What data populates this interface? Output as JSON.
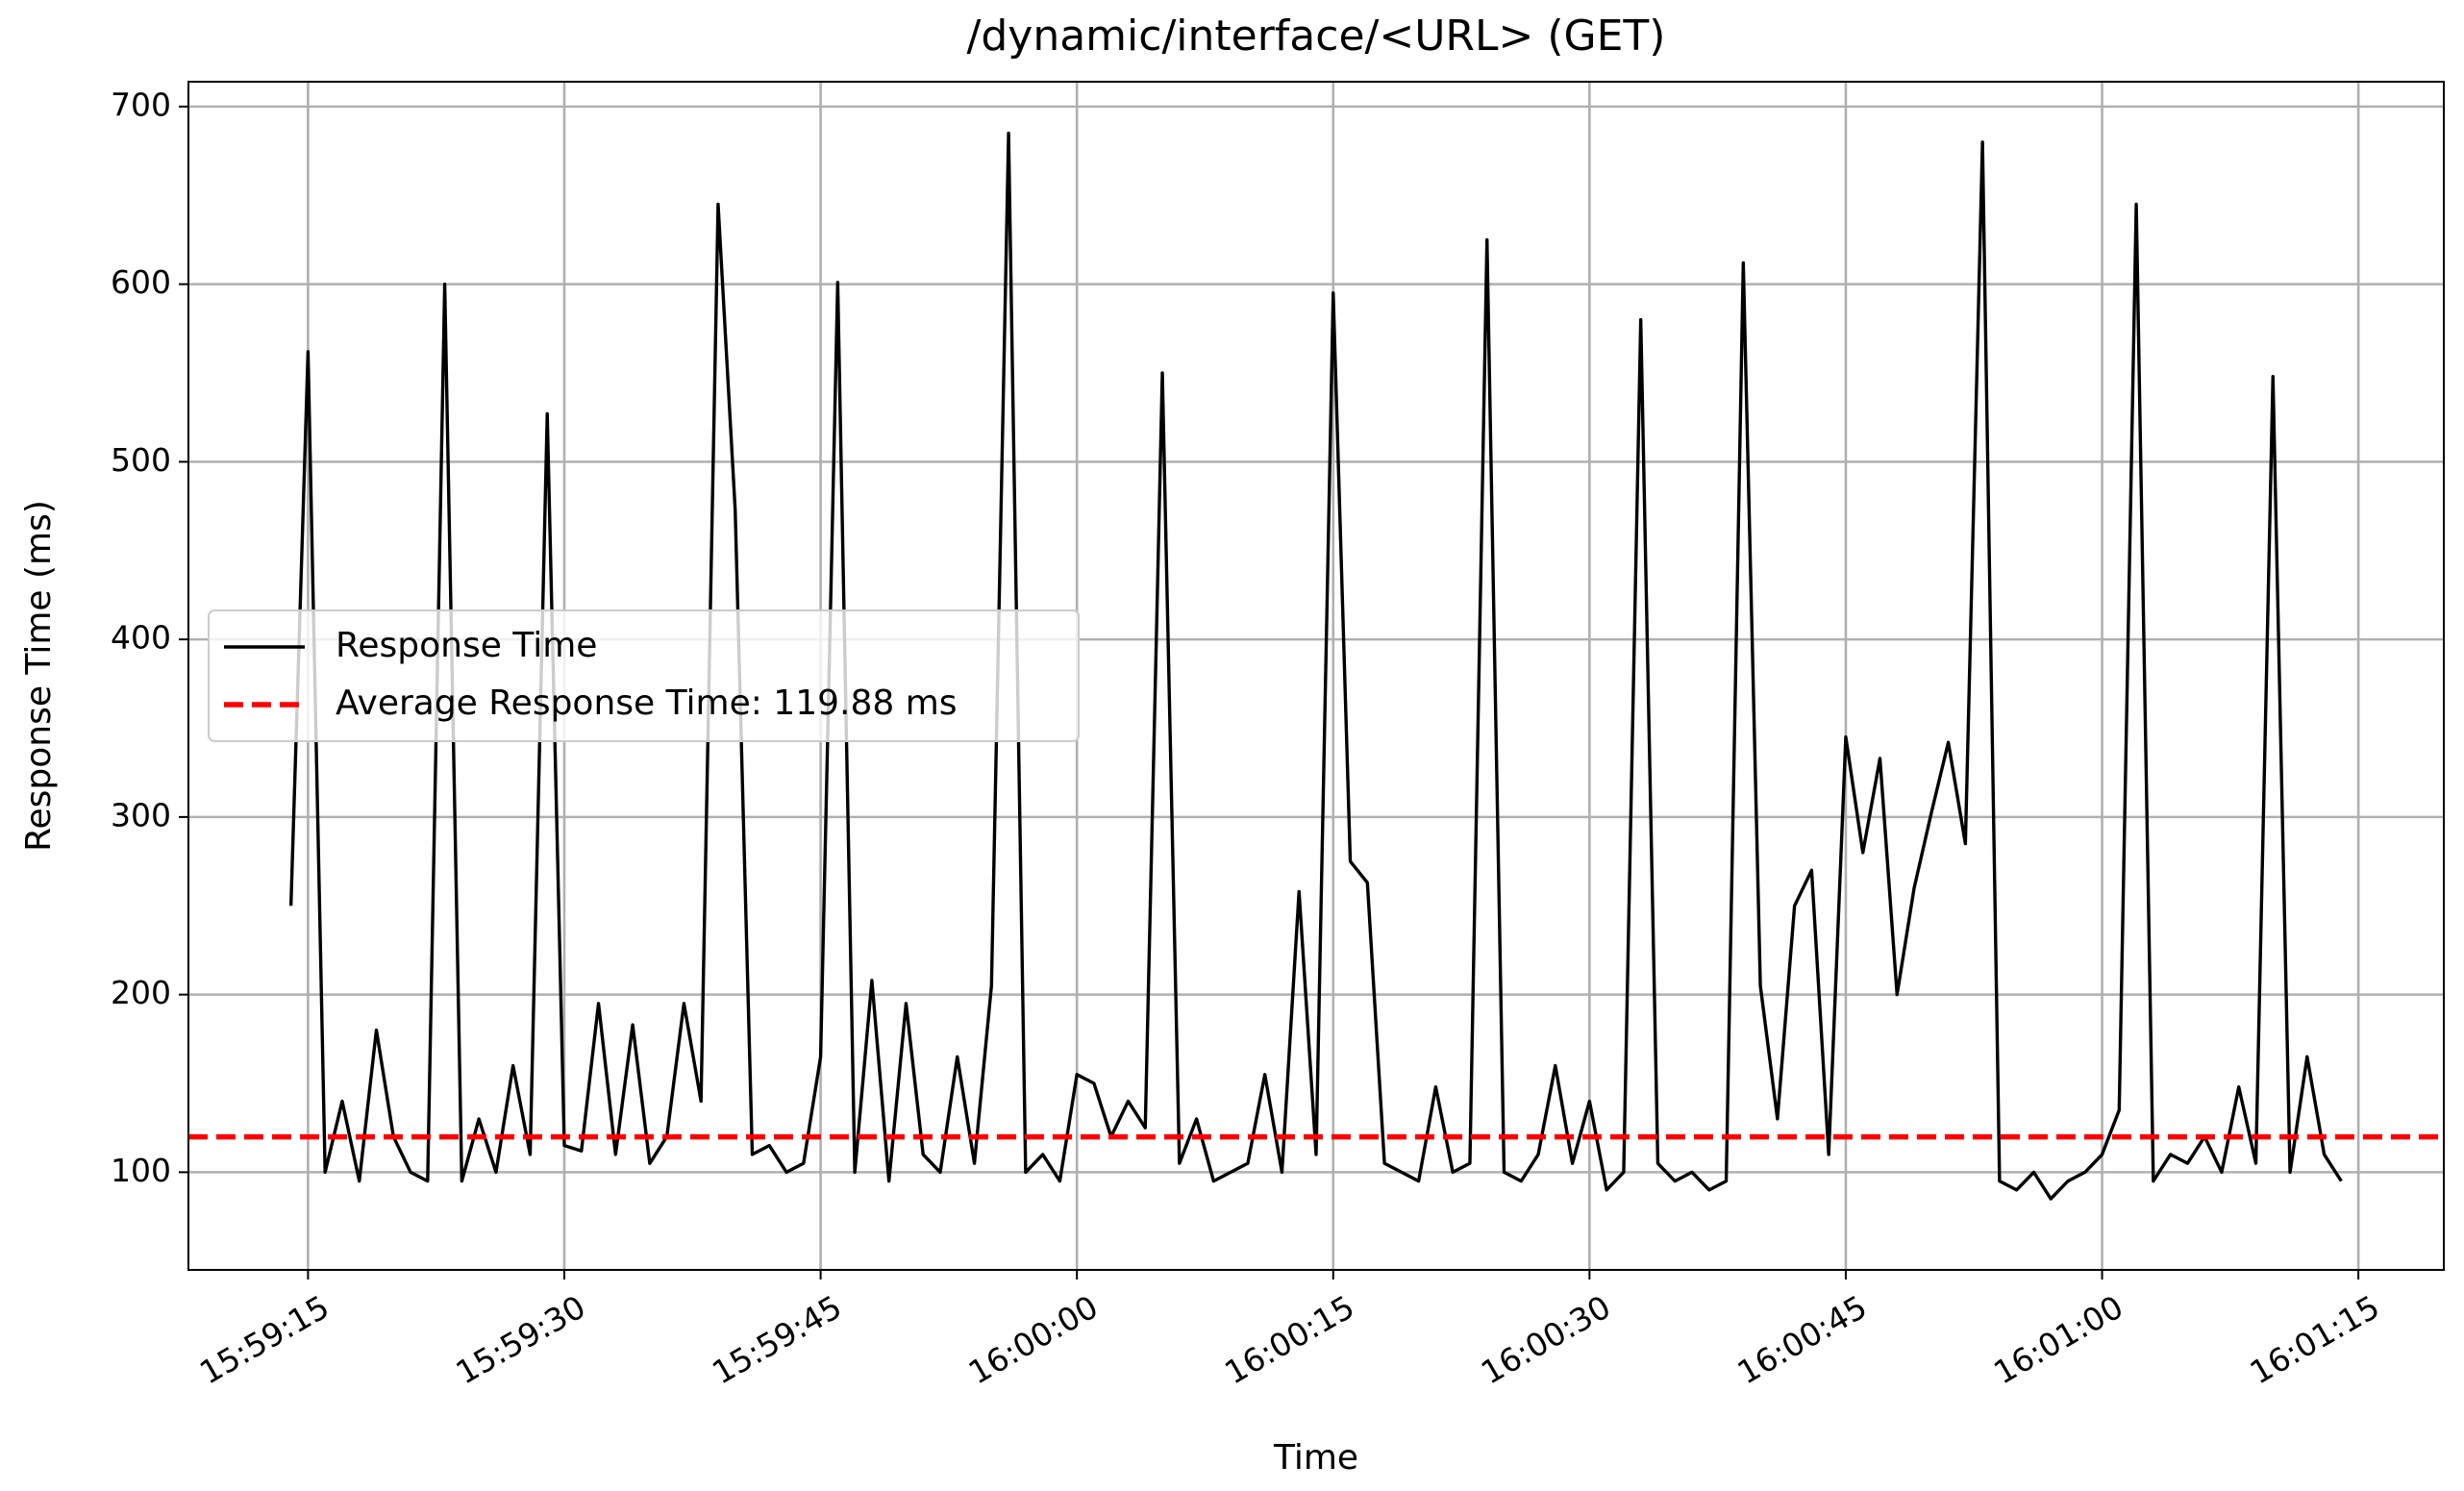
{
  "chart_data": {
    "type": "line",
    "title": "/dynamic/interface/<URL> (GET)",
    "x_label": "Time",
    "y_label": "Response Time (ms)",
    "x": [
      "15:59:14",
      "15:59:15",
      "15:59:16",
      "15:59:17",
      "15:59:18",
      "15:59:19",
      "15:59:20",
      "15:59:21",
      "15:59:22",
      "15:59:23",
      "15:59:24",
      "15:59:25",
      "15:59:26",
      "15:59:27",
      "15:59:28",
      "15:59:29",
      "15:59:30",
      "15:59:31",
      "15:59:32",
      "15:59:33",
      "15:59:34",
      "15:59:35",
      "15:59:36",
      "15:59:37",
      "15:59:38",
      "15:59:39",
      "15:59:40",
      "15:59:41",
      "15:59:42",
      "15:59:43",
      "15:59:44",
      "15:59:45",
      "15:59:46",
      "15:59:47",
      "15:59:48",
      "15:59:49",
      "15:59:50",
      "15:59:51",
      "15:59:52",
      "15:59:53",
      "15:59:54",
      "15:59:55",
      "15:59:56",
      "15:59:57",
      "15:59:58",
      "15:59:59",
      "16:00:00",
      "16:00:01",
      "16:00:02",
      "16:00:03",
      "16:00:04",
      "16:00:05",
      "16:00:06",
      "16:00:07",
      "16:00:08",
      "16:00:09",
      "16:00:10",
      "16:00:11",
      "16:00:12",
      "16:00:13",
      "16:00:14",
      "16:00:15",
      "16:00:16",
      "16:00:17",
      "16:00:18",
      "16:00:19",
      "16:00:20",
      "16:00:21",
      "16:00:22",
      "16:00:23",
      "16:00:24",
      "16:00:25",
      "16:00:26",
      "16:00:27",
      "16:00:28",
      "16:00:29",
      "16:00:30",
      "16:00:31",
      "16:00:32",
      "16:00:33",
      "16:00:34",
      "16:00:35",
      "16:00:36",
      "16:00:37",
      "16:00:38",
      "16:00:39",
      "16:00:40",
      "16:00:41",
      "16:00:42",
      "16:00:43",
      "16:00:44",
      "16:00:45",
      "16:00:46",
      "16:00:47",
      "16:00:48",
      "16:00:49",
      "16:00:50",
      "16:00:51",
      "16:00:52",
      "16:00:53",
      "16:00:54",
      "16:00:55",
      "16:00:56",
      "16:00:57",
      "16:00:58",
      "16:00:59",
      "16:01:00",
      "16:01:01",
      "16:01:02",
      "16:01:03",
      "16:01:04",
      "16:01:05",
      "16:01:06",
      "16:01:07",
      "16:01:08",
      "16:01:09",
      "16:01:10",
      "16:01:11",
      "16:01:12",
      "16:01:13",
      "16:01:14"
    ],
    "series": [
      {
        "name": "Response Time",
        "color": "#000000",
        "values": [
          250,
          562,
          100,
          140,
          95,
          180,
          120,
          100,
          95,
          600,
          95,
          130,
          100,
          160,
          110,
          527,
          115,
          112,
          195,
          110,
          183,
          105,
          120,
          195,
          140,
          645,
          473,
          110,
          115,
          100,
          105,
          165,
          601,
          100,
          208,
          95,
          195,
          110,
          100,
          165,
          105,
          205,
          685,
          100,
          110,
          95,
          155,
          150,
          120,
          140,
          125,
          550,
          105,
          130,
          95,
          100,
          105,
          155,
          100,
          258,
          110,
          595,
          275,
          263,
          105,
          100,
          95,
          148,
          100,
          105,
          625,
          100,
          95,
          110,
          160,
          105,
          140,
          90,
          100,
          580,
          105,
          95,
          100,
          90,
          95,
          612,
          205,
          130,
          250,
          270,
          110,
          345,
          280,
          333,
          200,
          260,
          302,
          342,
          285,
          680,
          95,
          90,
          100,
          85,
          95,
          100,
          110,
          135,
          645,
          95,
          110,
          105,
          120,
          100,
          148,
          105,
          548,
          100,
          165,
          110,
          95
        ]
      }
    ],
    "reference_line": {
      "name": "Average Response Time: 119.88 ms",
      "value": 119.88,
      "color": "#ff0000",
      "style": "dashed"
    },
    "xlim": [
      "15:59:08",
      "16:01:20"
    ],
    "xticks": [
      "15:59:15",
      "15:59:30",
      "15:59:45",
      "16:00:00",
      "16:00:15",
      "16:00:30",
      "16:00:45",
      "16:01:00",
      "16:01:15"
    ],
    "ylim": [
      45,
      714
    ],
    "yticks": [
      100,
      200,
      300,
      400,
      500,
      600,
      700
    ],
    "grid": true,
    "legend": "center left"
  }
}
